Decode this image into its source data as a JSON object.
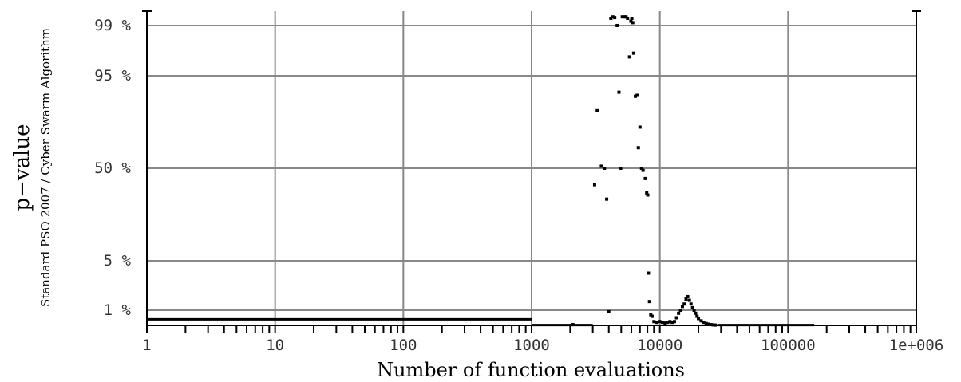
{
  "chart_data": {
    "type": "scatter",
    "title": "",
    "xlabel": "Number of function evaluations",
    "ylabel": "p−value",
    "ylabel_sub": "Standard PSO 2007 / Cyber Swarm Algorithm",
    "x_scale": "log",
    "xlim": [
      1,
      1000000
    ],
    "x_ticks": [
      {
        "value": 1,
        "label": "1"
      },
      {
        "value": 10,
        "label": "10"
      },
      {
        "value": 100,
        "label": "100"
      },
      {
        "value": 1000,
        "label": "1000"
      },
      {
        "value": 10000,
        "label": "10000"
      },
      {
        "value": 100000,
        "label": "100000"
      },
      {
        "value": 1000000,
        "label": "1e+006"
      }
    ],
    "y_scale": "probability",
    "ylim_percent": [
      0,
      100
    ],
    "y_ticks": [
      {
        "value": 1,
        "label": "1  %"
      },
      {
        "value": 5,
        "label": "5  %"
      },
      {
        "value": 50,
        "label": "50  %"
      },
      {
        "value": 95,
        "label": "95  %"
      },
      {
        "value": 99,
        "label": "99  %"
      }
    ],
    "grid": true,
    "legend": "none",
    "colors": {
      "marks": "#000000",
      "grid": "#888888"
    },
    "segments": [
      {
        "x": [
          1,
          1000
        ],
        "y": 0.4
      },
      {
        "x": [
          1000,
          3000
        ],
        "y": 0.02
      },
      {
        "x": [
          28000,
          160000
        ],
        "y": 0.02
      }
    ],
    "series": [
      {
        "points": [
          [
            2100,
            0.05
          ],
          [
            3100,
            42
          ],
          [
            3250,
            78
          ],
          [
            3500,
            51
          ],
          [
            3700,
            50
          ],
          [
            3850,
            35
          ],
          [
            4000,
            0.9
          ],
          [
            4150,
            99.5
          ],
          [
            4300,
            99.6
          ],
          [
            4450,
            99.55
          ],
          [
            4650,
            99
          ],
          [
            4800,
            87
          ],
          [
            4950,
            50
          ],
          [
            5100,
            99.6
          ],
          [
            5300,
            99.6
          ],
          [
            5450,
            99.6
          ],
          [
            5600,
            99.5
          ],
          [
            5800,
            96.5
          ],
          [
            5950,
            99.3
          ],
          [
            6050,
            99.5
          ],
          [
            6150,
            99.2
          ],
          [
            6250,
            96.8
          ],
          [
            6450,
            85
          ],
          [
            6650,
            85.5
          ],
          [
            6800,
            60
          ],
          [
            7000,
            70
          ],
          [
            7200,
            50
          ],
          [
            7400,
            49
          ],
          [
            7700,
            45
          ],
          [
            7900,
            38
          ],
          [
            8050,
            37
          ],
          [
            8150,
            4
          ],
          [
            8300,
            1.7
          ],
          [
            8500,
            0.7
          ],
          [
            8700,
            0.6
          ],
          [
            9000,
            0.25
          ],
          [
            9500,
            0.2
          ],
          [
            10000,
            0.25
          ],
          [
            10500,
            0.2
          ],
          [
            11000,
            0.15
          ],
          [
            11500,
            0.2
          ],
          [
            12000,
            0.25
          ],
          [
            12500,
            0.2
          ],
          [
            13000,
            0.25
          ],
          [
            13500,
            0.5
          ],
          [
            14000,
            0.8
          ],
          [
            14500,
            1.0
          ],
          [
            15000,
            1.3
          ],
          [
            15500,
            1.5
          ],
          [
            16000,
            1.9
          ],
          [
            16500,
            2.1
          ],
          [
            17000,
            1.8
          ],
          [
            17500,
            1.5
          ],
          [
            18000,
            1.2
          ],
          [
            18500,
            1.0
          ],
          [
            19000,
            0.8
          ],
          [
            19500,
            0.6
          ],
          [
            20000,
            0.45
          ],
          [
            21000,
            0.3
          ],
          [
            22000,
            0.2
          ],
          [
            23000,
            0.12
          ],
          [
            24000,
            0.08
          ],
          [
            25000,
            0.05
          ],
          [
            26000,
            0.03
          ],
          [
            27000,
            0.02
          ]
        ]
      }
    ]
  }
}
